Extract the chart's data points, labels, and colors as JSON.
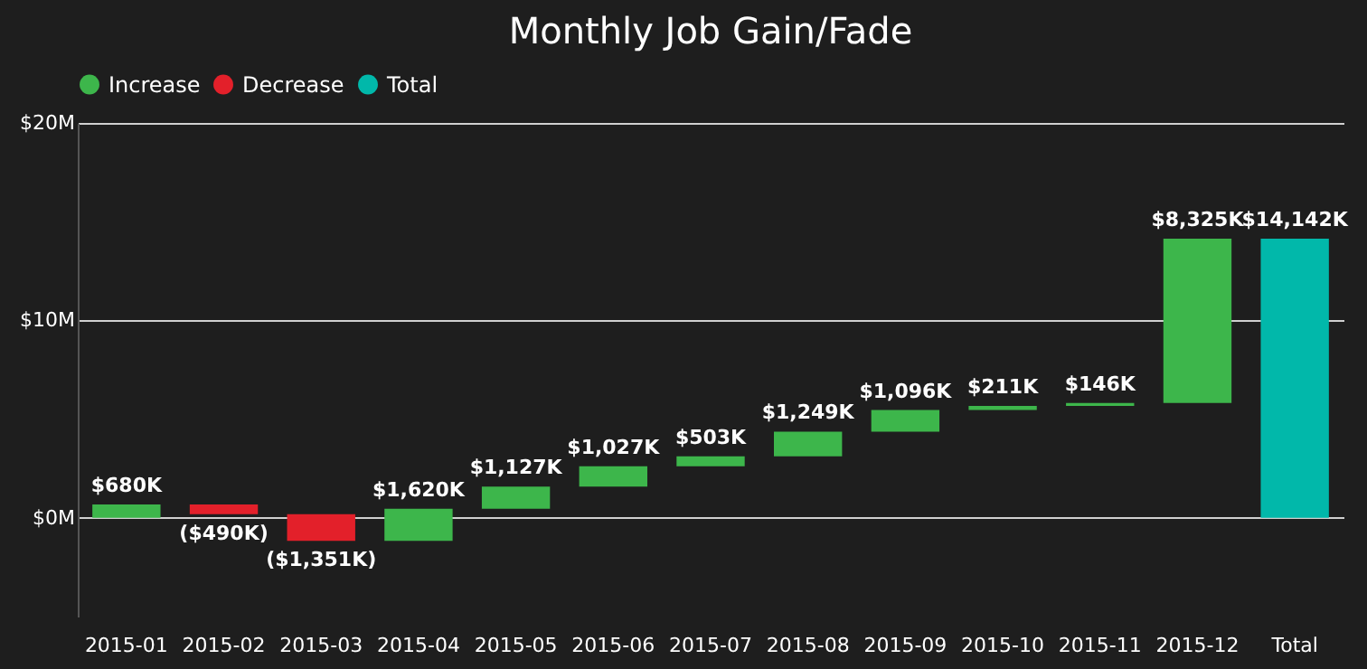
{
  "chart_data": {
    "type": "bar",
    "title": "Monthly Job Gain/Fade",
    "categories": [
      "2015-01",
      "2015-02",
      "2015-03",
      "2015-04",
      "2015-05",
      "2015-06",
      "2015-07",
      "2015-08",
      "2015-09",
      "2015-10",
      "2015-11",
      "2015-12",
      "Total"
    ],
    "series": [
      {
        "name": "Increase",
        "color": "#3db64b",
        "values": [
          0.68,
          null,
          null,
          1.62,
          1.127,
          1.027,
          0.503,
          1.249,
          1.096,
          0.211,
          0.146,
          8.325,
          null
        ],
        "base": [
          0,
          null,
          null,
          -1.161,
          0.459,
          1.586,
          2.613,
          3.116,
          4.365,
          5.461,
          5.672,
          5.818,
          null
        ]
      },
      {
        "name": "Decrease",
        "color": "#e3202a",
        "values": [
          null,
          -0.49,
          -1.351,
          null,
          null,
          null,
          null,
          null,
          null,
          null,
          null,
          null,
          null
        ],
        "base": [
          null,
          0.68,
          0.19,
          null,
          null,
          null,
          null,
          null,
          null,
          null,
          null,
          null,
          null
        ]
      },
      {
        "name": "Total",
        "color": "#01b8aa",
        "values": [
          null,
          null,
          null,
          null,
          null,
          null,
          null,
          null,
          null,
          null,
          null,
          null,
          14.142
        ],
        "base": [
          null,
          null,
          null,
          null,
          null,
          null,
          null,
          null,
          null,
          null,
          null,
          null,
          0
        ]
      }
    ],
    "value_labels": [
      "$680K",
      "($490K)",
      "($1,351K)",
      "$1,620K",
      "$1,127K",
      "$1,027K",
      "$503K",
      "$1,249K",
      "$1,096K",
      "$211K",
      "$146K",
      "$8,325K",
      "$14,142K"
    ],
    "ylim": [
      -5,
      20
    ],
    "yticks": [
      {
        "value": 0,
        "label": "$0M"
      },
      {
        "value": 10,
        "label": "$10M"
      },
      {
        "value": 20,
        "label": "$20M"
      }
    ],
    "grid": "y",
    "legend": "top left"
  }
}
